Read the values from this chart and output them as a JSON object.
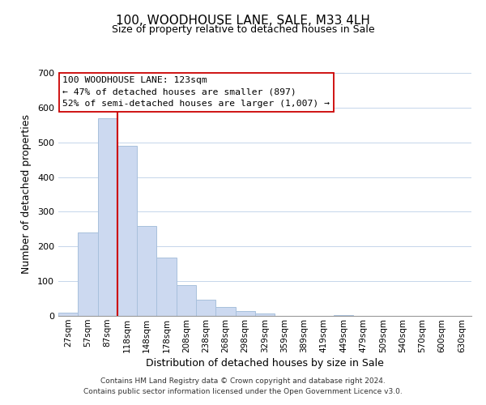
{
  "title": "100, WOODHOUSE LANE, SALE, M33 4LH",
  "subtitle": "Size of property relative to detached houses in Sale",
  "xlabel": "Distribution of detached houses by size in Sale",
  "ylabel": "Number of detached properties",
  "bar_color": "#ccd9f0",
  "bar_edge_color": "#a8c0dc",
  "categories": [
    "27sqm",
    "57sqm",
    "87sqm",
    "118sqm",
    "148sqm",
    "178sqm",
    "208sqm",
    "238sqm",
    "268sqm",
    "298sqm",
    "329sqm",
    "359sqm",
    "389sqm",
    "419sqm",
    "449sqm",
    "479sqm",
    "509sqm",
    "540sqm",
    "570sqm",
    "600sqm",
    "630sqm"
  ],
  "values": [
    10,
    240,
    570,
    490,
    258,
    168,
    88,
    47,
    26,
    14,
    8,
    0,
    0,
    0,
    3,
    0,
    0,
    0,
    0,
    0,
    0
  ],
  "ylim": [
    0,
    700
  ],
  "yticks": [
    0,
    100,
    200,
    300,
    400,
    500,
    600,
    700
  ],
  "marker_bar_index": 3,
  "marker_color": "#cc0000",
  "annotation_line1": "100 WOODHOUSE LANE: 123sqm",
  "annotation_line2": "← 47% of detached houses are smaller (897)",
  "annotation_line3": "52% of semi-detached houses are larger (1,007) →",
  "footer1": "Contains HM Land Registry data © Crown copyright and database right 2024.",
  "footer2": "Contains public sector information licensed under the Open Government Licence v3.0."
}
